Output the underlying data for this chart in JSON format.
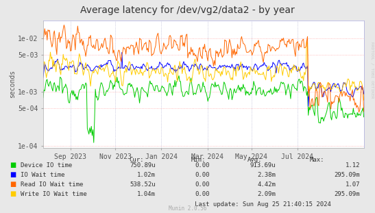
{
  "title": "Average latency for /dev/vg2/data2 - by year",
  "ylabel": "seconds",
  "background_color": "#e8e8e8",
  "plot_bg_color": "#ffffff",
  "title_fontsize": 10,
  "label_fontsize": 7,
  "tick_fontsize": 7,
  "yticks": [
    0.0001,
    0.0005,
    0.001,
    0.005,
    0.01
  ],
  "ytick_labels": [
    "1e-04",
    "5e-04",
    "1e-03",
    "5e-03",
    "1e-02"
  ],
  "series": [
    {
      "name": "Device IO time",
      "color": "#00cc00"
    },
    {
      "name": "IO Wait time",
      "color": "#0000ff"
    },
    {
      "name": "Read IO Wait time",
      "color": "#ff6600"
    },
    {
      "name": "Write IO Wait time",
      "color": "#ffcc00"
    }
  ],
  "legend_data": [
    {
      "label": "Device IO time",
      "color": "#00cc00",
      "cur": "750.89u",
      "min": "0.00",
      "avg": "913.69u",
      "max": "1.12"
    },
    {
      "label": "IO Wait time",
      "color": "#0000ff",
      "cur": "1.02m",
      "min": "0.00",
      "avg": "2.38m",
      "max": "295.09m"
    },
    {
      "label": "Read IO Wait time",
      "color": "#ff6600",
      "cur": "538.52u",
      "min": "0.00",
      "avg": "4.42m",
      "max": "1.07"
    },
    {
      "label": "Write IO Wait time",
      "color": "#ffcc00",
      "cur": "1.04m",
      "min": "0.00",
      "avg": "2.09m",
      "max": "295.09m"
    }
  ],
  "last_update": "Last update: Sun Aug 25 21:40:15 2024",
  "munin_version": "Munin 2.0.56",
  "watermark": "RRDTOOL / TOBI OETIKER",
  "xticklabels": [
    "Sep 2023",
    "Nov 2023",
    "Jan 2024",
    "Mar 2024",
    "May 2024",
    "Jul 2024"
  ],
  "xtick_frac": [
    0.085,
    0.225,
    0.368,
    0.513,
    0.65,
    0.793
  ],
  "hline_color": "#ffcccc",
  "vline_color": "#ccccff",
  "spine_color": "#aaaaaa"
}
